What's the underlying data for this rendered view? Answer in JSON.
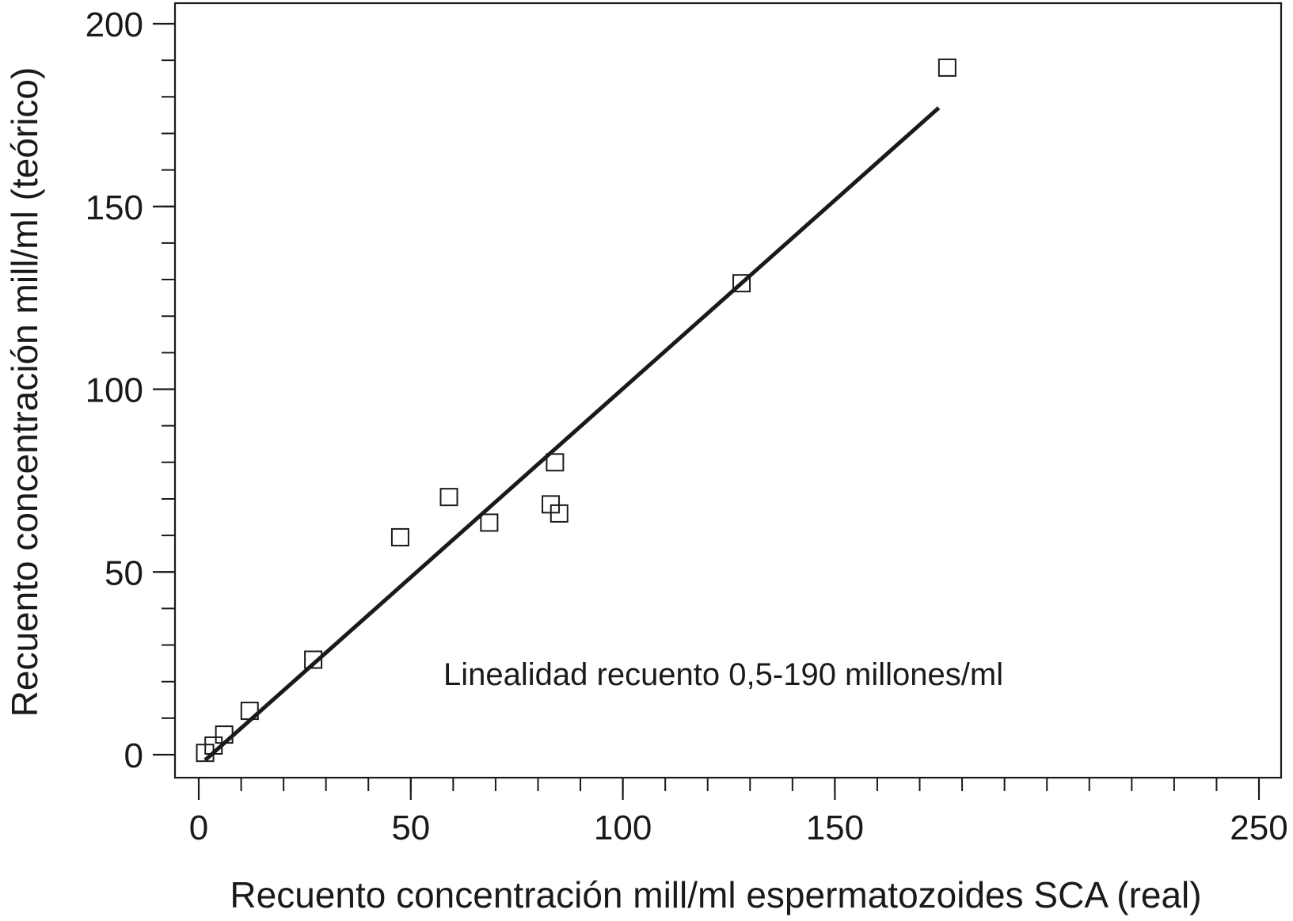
{
  "chart_data": {
    "type": "scatter",
    "title": "",
    "xlabel": "Recuento concentración mill/ml espermatozoides SCA (real)",
    "ylabel": "Recuento concentración mill/ml (teórico)",
    "xlim": [
      -5,
      250
    ],
    "ylim": [
      -7,
      200
    ],
    "x_ticks": [
      0,
      50,
      100,
      150,
      250
    ],
    "y_ticks": [
      0,
      50,
      100,
      150,
      200
    ],
    "x_minor_step": 10,
    "y_minor_step": 10,
    "grid": false,
    "annotation": "Linealidad recuento 0,5-190 millones/ml",
    "series": [
      {
        "marker": "open-square",
        "x": [
          1.5,
          3.5,
          6,
          12,
          27,
          47.5,
          59,
          68.5,
          83,
          84,
          85,
          128,
          176.5
        ],
        "y": [
          0.5,
          2.5,
          5.5,
          12,
          26,
          59.5,
          70.5,
          63.5,
          68.5,
          80,
          66,
          129,
          188
        ]
      }
    ],
    "fit_line": {
      "x": [
        1.5,
        174.5
      ],
      "y": [
        -1.5,
        177
      ]
    },
    "colors": {
      "ink": "#1a1a1a",
      "background": "#ffffff"
    }
  }
}
